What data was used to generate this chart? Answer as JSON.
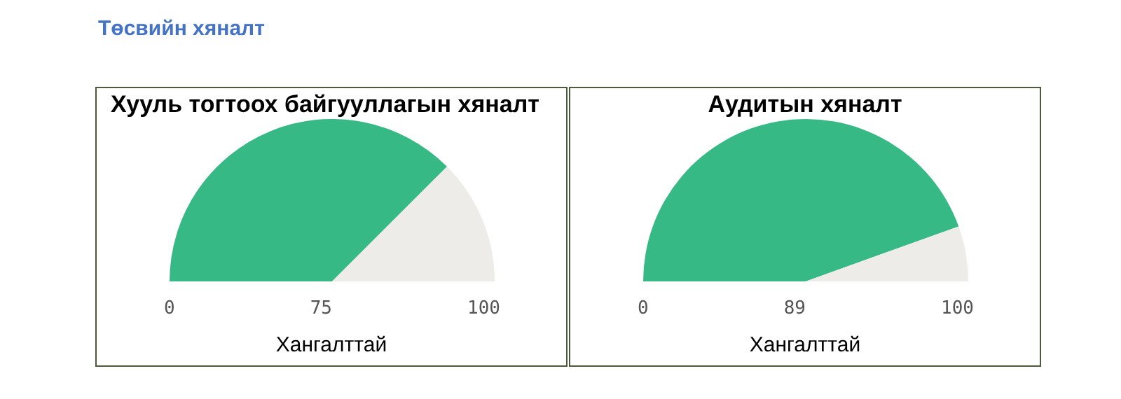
{
  "chart_data": [
    {
      "type": "other",
      "title": "Төсвийн хяналт"
    },
    {
      "type": "pie",
      "title": "Хууль тогтоох байгууллагын хяналт",
      "xlabel": "Хангалттай",
      "categories": [
        null,
        null
      ],
      "values": [
        75,
        25
      ],
      "colors": [
        "#36b985",
        "#eeece8"
      ],
      "annotations": [
        "0",
        "75",
        "100"
      ],
      "legend": false
    },
    {
      "type": "pie",
      "title": "Аудитын хяналт",
      "xlabel": "Хангалттай",
      "categories": [
        null,
        null
      ],
      "values": [
        89,
        11
      ],
      "colors": [
        "#36b985",
        "#eeece8"
      ],
      "annotations": [
        "0",
        "89",
        "100"
      ],
      "legend": false
    }
  ]
}
